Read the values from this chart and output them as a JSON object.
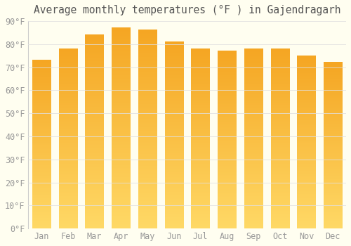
{
  "months": [
    "Jan",
    "Feb",
    "Mar",
    "Apr",
    "May",
    "Jun",
    "Jul",
    "Aug",
    "Sep",
    "Oct",
    "Nov",
    "Dec"
  ],
  "values": [
    73,
    78,
    84,
    87,
    86,
    81,
    78,
    77,
    78,
    78,
    75,
    72
  ],
  "bar_color_bottom": "#F5A623",
  "bar_color_top": "#FFD966",
  "title": "Average monthly temperatures (°F ) in Gajendragarh",
  "ylim": [
    0,
    90
  ],
  "yticks": [
    0,
    10,
    20,
    30,
    40,
    50,
    60,
    70,
    80,
    90
  ],
  "ytick_labels": [
    "0°F",
    "10°F",
    "20°F",
    "30°F",
    "40°F",
    "50°F",
    "60°F",
    "70°F",
    "80°F",
    "90°F"
  ],
  "background_color": "#FFFEF0",
  "grid_color": "#e0e0e0",
  "title_fontsize": 10.5,
  "tick_fontsize": 8.5,
  "bar_width": 0.7
}
